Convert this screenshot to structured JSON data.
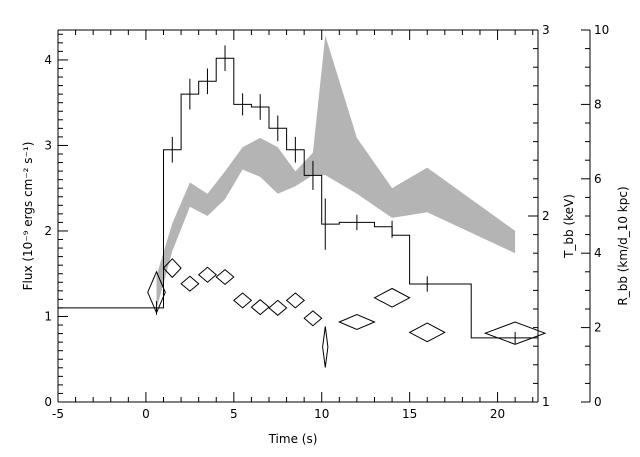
{
  "chart_data": {
    "type": "line",
    "title": "",
    "xlabel": "Time (s)",
    "ylabel": "Flux (10⁻⁹ ergs cm⁻² s⁻¹)",
    "y2label": "T_bb (keV)",
    "y3label": "R_bb (km/d_10 kpc)",
    "xlim": [
      -5,
      22.3
    ],
    "ylim": [
      0,
      4.35
    ],
    "y2lim": [
      1,
      3
    ],
    "y3lim": [
      0,
      10
    ],
    "xticks": [
      "-5",
      "0",
      "5",
      "10",
      "15",
      "20"
    ],
    "yticks": [
      "0",
      "1",
      "2",
      "3",
      "4"
    ],
    "y2ticks": [
      "1",
      "2",
      "3"
    ],
    "y3ticks": [
      "0",
      "2",
      "4",
      "6",
      "8",
      "10"
    ],
    "grid": false,
    "legend": "none",
    "series": [
      {
        "type": "step",
        "axis": "flux",
        "color": "#000000",
        "x_edges": [
          -5,
          1,
          2,
          3,
          4,
          5,
          6,
          7,
          8,
          9,
          10,
          11,
          13,
          14,
          15,
          18.5,
          22.3
        ],
        "values": [
          1.1,
          2.95,
          3.6,
          3.75,
          4.02,
          3.48,
          3.45,
          3.2,
          2.95,
          2.65,
          2.08,
          2.1,
          2.05,
          1.95,
          1.38,
          0.75
        ],
        "errors": [
          {
            "x": 0.6,
            "y": 1.1,
            "err": 0.08
          },
          {
            "x": 1.5,
            "y": 2.95,
            "err": 0.15
          },
          {
            "x": 2.5,
            "y": 3.6,
            "err": 0.18
          },
          {
            "x": 3.5,
            "y": 3.75,
            "err": 0.15
          },
          {
            "x": 4.5,
            "y": 4.02,
            "err": 0.15
          },
          {
            "x": 5.5,
            "y": 3.48,
            "err": 0.13
          },
          {
            "x": 6.5,
            "y": 3.45,
            "err": 0.15
          },
          {
            "x": 7.5,
            "y": 3.2,
            "err": 0.15
          },
          {
            "x": 8.5,
            "y": 2.95,
            "err": 0.15
          },
          {
            "x": 9.5,
            "y": 2.65,
            "err": 0.17
          },
          {
            "x": 10.2,
            "y": 2.08,
            "err": 0.3
          },
          {
            "x": 12,
            "y": 2.1,
            "err": 0.09
          },
          {
            "x": 14,
            "y": 2.02,
            "err": 0.1
          },
          {
            "x": 16,
            "y": 1.38,
            "err": 0.09
          },
          {
            "x": 21,
            "y": 0.75,
            "err": 0.07
          }
        ]
      },
      {
        "type": "band",
        "axis": "temperature",
        "color": "#b4b4b4",
        "x": [
          0.6,
          1.5,
          2.5,
          3.5,
          4.5,
          5.5,
          6.5,
          7.5,
          8.5,
          9.5,
          10.2,
          12,
          14,
          16,
          21
        ],
        "lower": [
          1.5,
          1.81,
          2.05,
          2.0,
          2.09,
          2.25,
          2.21,
          2.12,
          2.16,
          2.22,
          2.22,
          2.12,
          1.99,
          2.02,
          1.8
        ],
        "upper": [
          1.68,
          1.96,
          2.18,
          2.12,
          2.24,
          2.37,
          2.42,
          2.37,
          2.24,
          2.34,
          2.97,
          2.42,
          2.15,
          2.26,
          1.92
        ]
      },
      {
        "type": "diamonds",
        "axis": "radius",
        "color": "#000000",
        "x": [
          0.6,
          1.5,
          2.5,
          3.5,
          4.5,
          5.5,
          6.5,
          7.5,
          8.5,
          9.5,
          10.2,
          12,
          14,
          16,
          21
        ],
        "y": [
          2.95,
          3.6,
          3.18,
          3.42,
          3.36,
          2.73,
          2.55,
          2.53,
          2.73,
          2.25,
          1.48,
          2.15,
          2.8,
          1.87,
          1.85
        ],
        "dx": [
          0.5,
          0.5,
          0.5,
          0.5,
          0.5,
          0.5,
          0.5,
          0.5,
          0.5,
          0.5,
          0.15,
          1.0,
          1.0,
          1.0,
          1.7
        ],
        "dy": [
          0.55,
          0.25,
          0.2,
          0.2,
          0.2,
          0.2,
          0.2,
          0.2,
          0.2,
          0.2,
          0.55,
          0.2,
          0.25,
          0.25,
          0.3
        ]
      }
    ]
  }
}
